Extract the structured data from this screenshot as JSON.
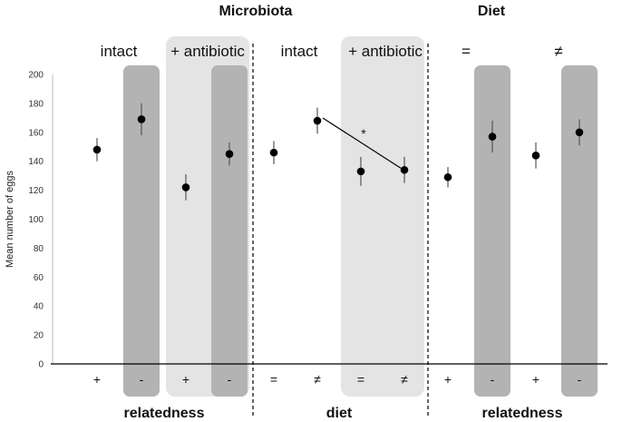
{
  "chart_data": {
    "type": "scatter",
    "ylabel": "Mean number of eggs",
    "ylim": [
      0,
      200
    ],
    "yticks": [
      "0",
      "20",
      "40",
      "60",
      "80",
      "100",
      "120",
      "140",
      "160",
      "180",
      "200"
    ],
    "sections": [
      "Microbiota",
      "Diet"
    ],
    "conditions": [
      "intact",
      "+ antibiotic",
      "intact",
      "+ antibiotic",
      "=",
      "≠"
    ],
    "bottom_labels": [
      "relatedness",
      "diet",
      "relatedness"
    ],
    "categories": [
      "+",
      "-",
      "+",
      "-",
      "=",
      "≠",
      "=",
      "≠",
      "+",
      "-",
      "+",
      "-"
    ],
    "points": [
      {
        "category": "+",
        "mean": 148,
        "err": 8
      },
      {
        "category": "-",
        "mean": 169,
        "err": 11
      },
      {
        "category": "+",
        "mean": 122,
        "err": 9
      },
      {
        "category": "-",
        "mean": 145,
        "err": 8
      },
      {
        "category": "=",
        "mean": 146,
        "err": 8
      },
      {
        "category": "≠",
        "mean": 168,
        "err": 9
      },
      {
        "category": "=",
        "mean": 133,
        "err": 10
      },
      {
        "category": "≠",
        "mean": 134,
        "err": 9
      },
      {
        "category": "+",
        "mean": 129,
        "err": 7
      },
      {
        "category": "-",
        "mean": 157,
        "err": 11
      },
      {
        "category": "+",
        "mean": 144,
        "err": 9
      },
      {
        "category": "-",
        "mean": 160,
        "err": 9
      }
    ],
    "significance": {
      "label": "*",
      "from_index": 5,
      "to_index": 7
    },
    "dark_shaded_indices": [
      1,
      3,
      9,
      11
    ],
    "light_shaded_groups": [
      [
        2,
        3
      ],
      [
        6,
        7
      ]
    ],
    "colors": {
      "dark_band": "#b3b3b3",
      "light_band": "#e4e4e4",
      "marker": "#000000",
      "axis": "#000000"
    }
  }
}
